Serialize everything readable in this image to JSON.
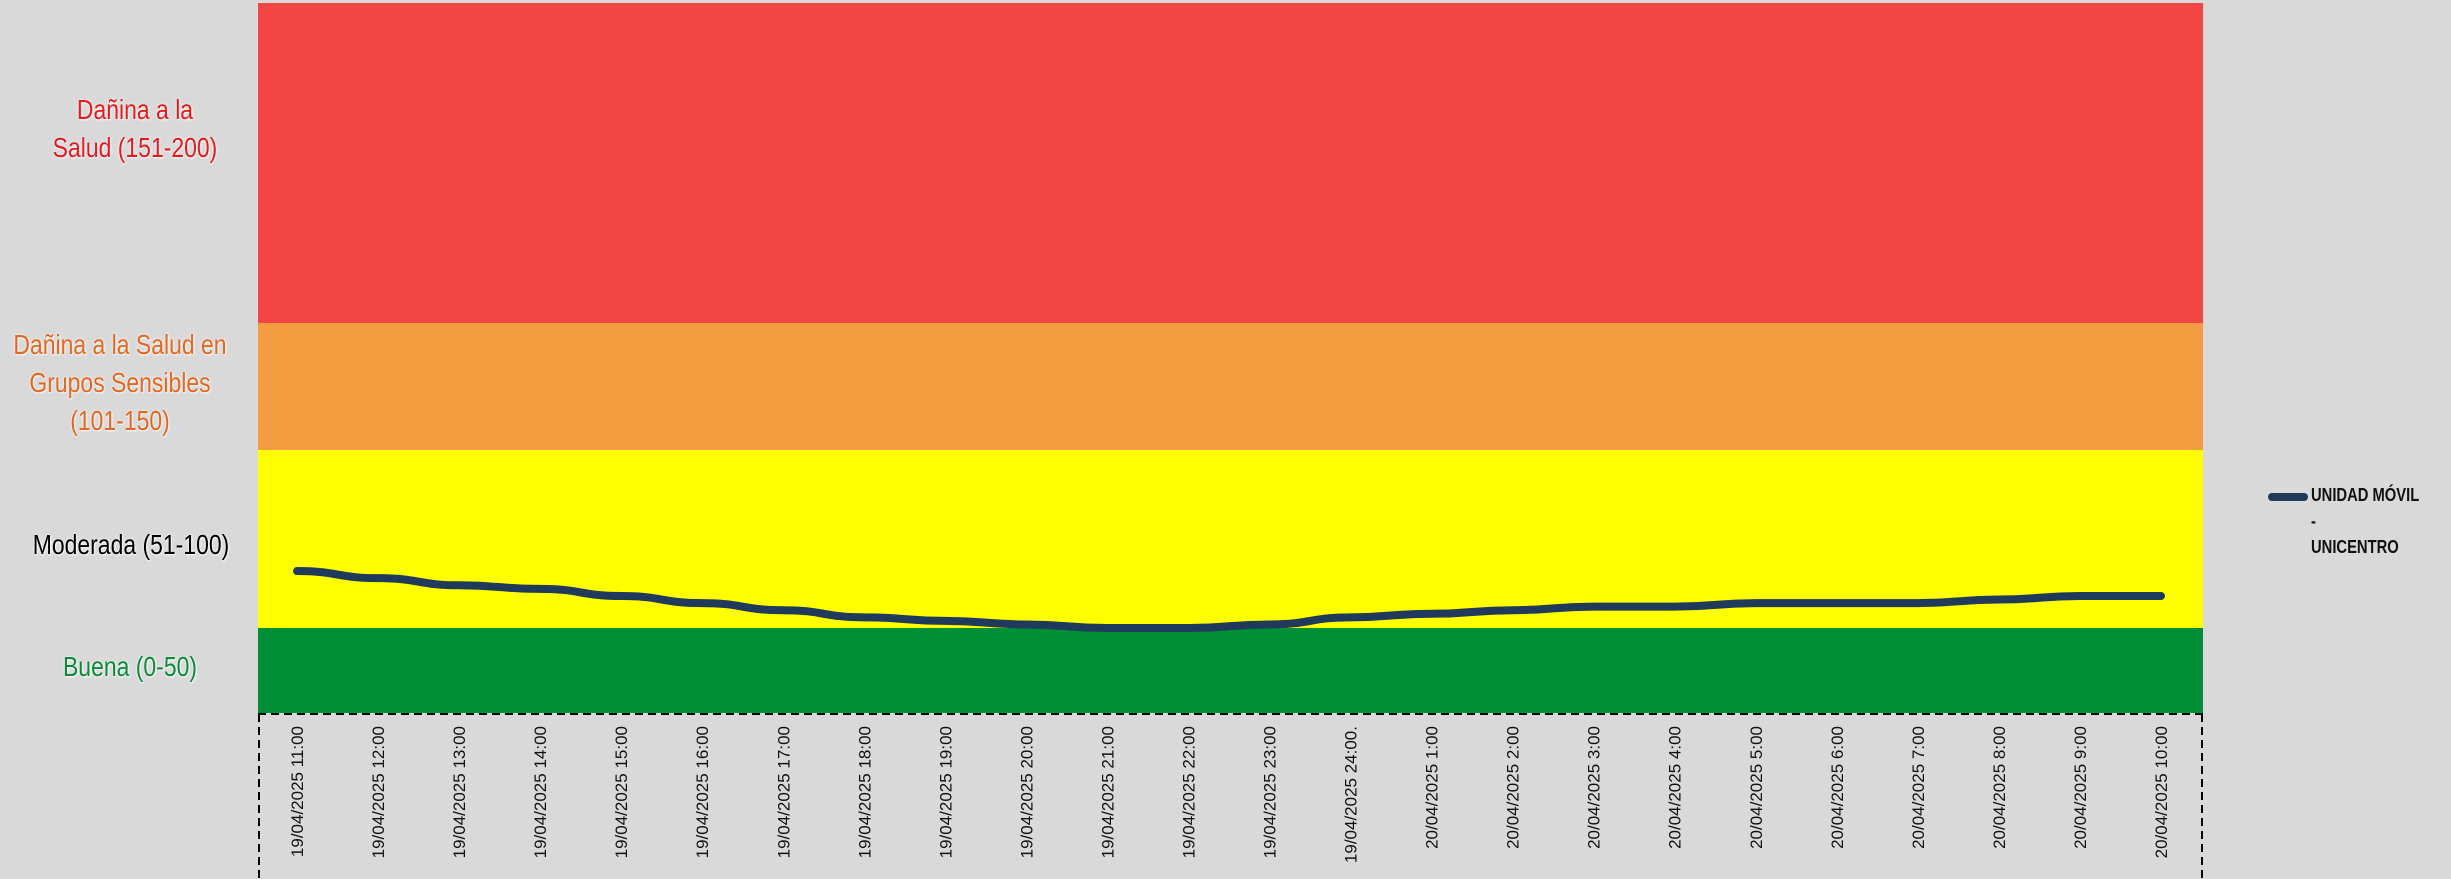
{
  "chart_data": {
    "type": "line",
    "categories": [
      "19/04/2025 11:00",
      "19/04/2025 12:00",
      "19/04/2025 13:00",
      "19/04/2025 14:00",
      "19/04/2025 15:00",
      "19/04/2025 16:00",
      "19/04/2025 17:00",
      "19/04/2025 18:00",
      "19/04/2025 19:00",
      "19/04/2025 20:00",
      "19/04/2025 21:00",
      "19/04/2025 22:00",
      "19/04/2025 23:00",
      "19/04/2025 24:00.",
      "20/04/2025 1:00",
      "20/04/2025 2:00",
      "20/04/2025 3:00",
      "20/04/2025 4:00",
      "20/04/2025 5:00",
      "20/04/2025 6:00",
      "20/04/2025 7:00",
      "20/04/2025 8:00",
      "20/04/2025 9:00",
      "20/04/2025 10:00"
    ],
    "series": [
      {
        "name": "UNIDAD MÓVIL - UNICENTRO",
        "color": "#1f3a5a",
        "values": [
          66,
          64,
          62,
          61,
          59,
          57,
          55,
          53,
          52,
          51,
          50,
          50,
          51,
          53,
          54,
          55,
          56,
          56,
          57,
          57,
          57,
          58,
          59,
          59
        ]
      }
    ],
    "ylim": [
      0,
      200
    ],
    "bands": [
      {
        "label": "Dañina a la Salud (151-200)",
        "lines": [
          "Dañina a la",
          "Salud (151-200)"
        ],
        "from": 151,
        "to": 200,
        "color": "#f44545",
        "label_color": "#e8191e"
      },
      {
        "label": "Dañina a la Salud en Grupos Sensibles (101-150)",
        "lines": [
          "Dañina a la Salud en",
          "Grupos Sensibles",
          "(101-150)"
        ],
        "from": 101,
        "to": 150,
        "color": "#f39c40",
        "label_color": "#e5661f"
      },
      {
        "label": "Moderada (51-100)",
        "lines": [
          "Moderada (51-100)"
        ],
        "from": 51,
        "to": 100,
        "color": "#ffff00",
        "label_color": "#000000"
      },
      {
        "label": "Buena (0-50)",
        "lines": [
          "Buena (0-50)"
        ],
        "from": 0,
        "to": 50,
        "color": "#008f36",
        "label_color": "#0b8a3a"
      }
    ],
    "legend": {
      "position": "right",
      "lines": [
        "UNIDAD MÓVIL -",
        "UNICENTRO"
      ]
    },
    "grid": false
  }
}
